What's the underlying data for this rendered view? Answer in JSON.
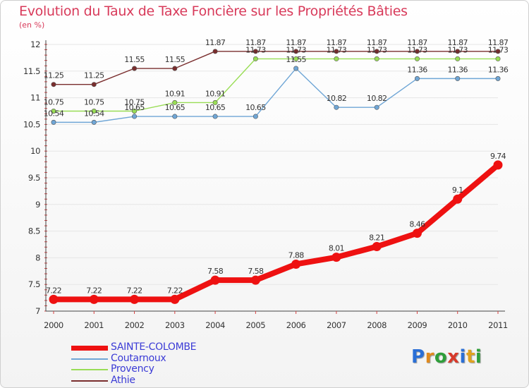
{
  "title": "Evolution du Taux de Taxe Foncière sur les Propriétés Bâties",
  "unit": "(en %)",
  "logo": {
    "letters": [
      "P",
      "r",
      "o",
      "x",
      "i",
      "t",
      "i"
    ],
    "colors": [
      "#2a6fd6",
      "#e08a1e",
      "#2e9e3a",
      "#d83a2a",
      "#2a6fd6",
      "#e0a21e",
      "#2e9e3a"
    ]
  },
  "chart_data": {
    "type": "line",
    "title": "Evolution du Taux de Taxe Foncière sur les Propriétés Bâties",
    "ylabel": "(en %)",
    "xlabel": "",
    "ylim": [
      7,
      12
    ],
    "yticks": [
      "7",
      "7.5",
      "8",
      "8.5",
      "9",
      "9.5",
      "10",
      "10.5",
      "11",
      "11.5",
      "12"
    ],
    "x": [
      "2000",
      "2001",
      "2002",
      "2003",
      "2004",
      "2005",
      "2006",
      "2007",
      "2008",
      "2009",
      "2010",
      "2011"
    ],
    "series": [
      {
        "name": "SAINTE-COLOMBE",
        "color": "#ee1111",
        "values": [
          7.22,
          7.22,
          7.22,
          7.22,
          7.58,
          7.58,
          7.88,
          8.01,
          8.21,
          8.46,
          9.1,
          9.74
        ],
        "labels": [
          "7.22",
          "7.22",
          "7.22",
          "7.22",
          "7.58",
          "7.58",
          "7.88",
          "8.01",
          "8.21",
          "8.46",
          "9.1",
          "9.74"
        ]
      },
      {
        "name": "Coutarnoux",
        "color": "#6fa6d6",
        "values": [
          10.54,
          10.54,
          10.65,
          10.65,
          10.65,
          10.65,
          11.55,
          10.82,
          10.82,
          11.36,
          11.36,
          11.36
        ],
        "labels": [
          "10.54",
          "10.54",
          "10.65",
          "10.65",
          "10.65",
          "10.65",
          "11.55",
          "10.82",
          "10.82",
          "11.36",
          "11.36",
          "11.36"
        ]
      },
      {
        "name": "Provency",
        "color": "#99dd55",
        "values": [
          10.75,
          10.75,
          10.75,
          10.91,
          10.91,
          11.73,
          11.73,
          11.73,
          11.73,
          11.73,
          11.73,
          11.73
        ],
        "labels": [
          "10.75",
          "10.75",
          "10.75",
          "10.91",
          "10.91",
          "11.73",
          "11.73",
          "11.73",
          "11.73",
          "11.73",
          "11.73",
          "11.73"
        ]
      },
      {
        "name": "Athie",
        "color": "#7a2e2e",
        "values": [
          11.25,
          11.25,
          11.55,
          11.55,
          11.87,
          11.87,
          11.87,
          11.87,
          11.87,
          11.87,
          11.87,
          11.87
        ],
        "labels": [
          "11.25",
          "11.25",
          "11.55",
          "11.55",
          "11.87",
          "11.87",
          "11.87",
          "11.87",
          "11.87",
          "11.87",
          "11.87",
          "11.87"
        ]
      }
    ],
    "legend": [
      "SAINTE-COLOMBE",
      "Coutarnoux",
      "Provency",
      "Athie"
    ]
  }
}
